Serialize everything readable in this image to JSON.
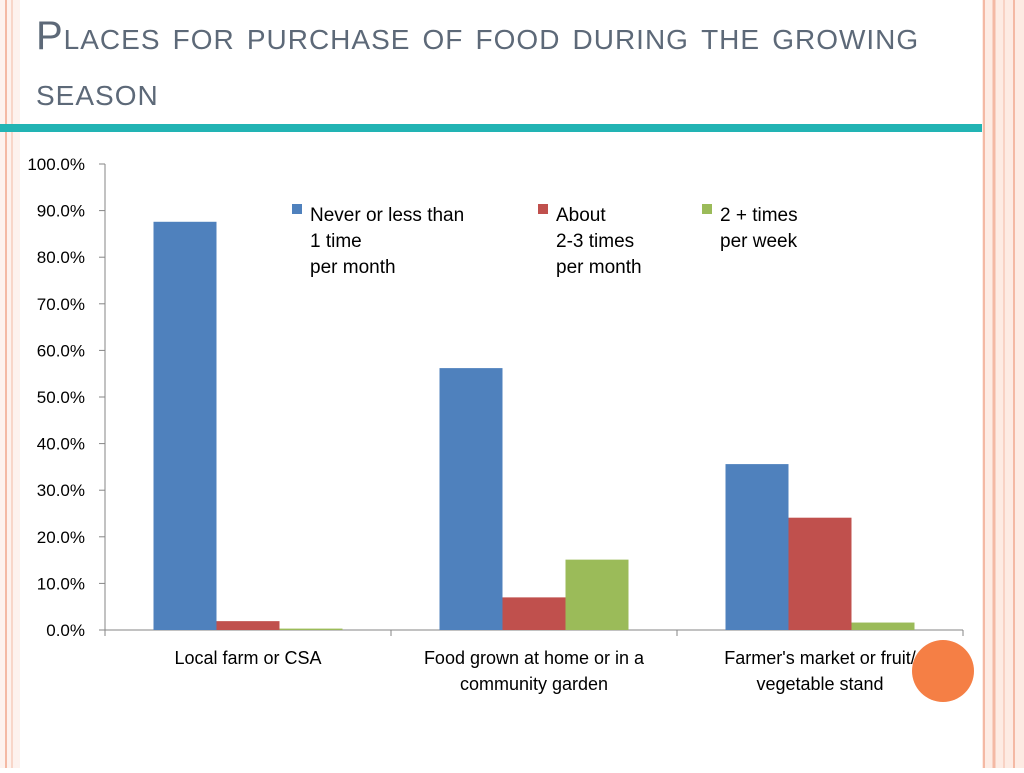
{
  "slide": {
    "title": "Places for purchase of food during the growing season",
    "colors": {
      "title": "#5d6978",
      "rule": "#22b4b4",
      "border": "#f4b9a4",
      "accent_circle": "#f57f45"
    }
  },
  "chart_data": {
    "type": "bar",
    "categories": [
      [
        "Local farm or CSA"
      ],
      [
        "Food grown at home or in a",
        "community garden"
      ],
      [
        "Farmer's market or fruit/",
        "vegetable stand"
      ]
    ],
    "series": [
      {
        "name": [
          "Never or less than",
          "1 time",
          "per month"
        ],
        "color": "#4f81bd",
        "values": [
          87.6,
          56.2,
          35.6
        ]
      },
      {
        "name": [
          "About",
          "2-3 times",
          "per month"
        ],
        "color": "#c0504d",
        "values": [
          1.9,
          7.0,
          24.1
        ]
      },
      {
        "name": [
          "2 + times",
          "per week"
        ],
        "color": "#9bbb59",
        "values": [
          0.3,
          15.1,
          1.6
        ]
      }
    ],
    "ylim": [
      0,
      100
    ],
    "yticks": [
      "0.0%",
      "10.0%",
      "20.0%",
      "30.0%",
      "40.0%",
      "50.0%",
      "60.0%",
      "70.0%",
      "80.0%",
      "90.0%",
      "100.0%"
    ],
    "legend_position": "top-center",
    "grid": false
  }
}
